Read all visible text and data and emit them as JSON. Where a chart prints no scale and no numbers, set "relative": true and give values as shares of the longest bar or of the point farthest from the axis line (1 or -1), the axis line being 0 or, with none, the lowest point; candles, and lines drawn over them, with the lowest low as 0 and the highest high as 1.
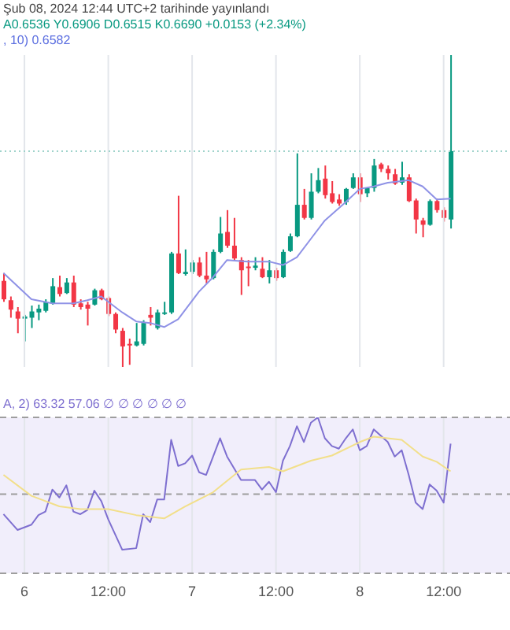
{
  "chart_data": [
    {
      "type": "candlestick",
      "relative": true,
      "annotations": [
        "Şub 08, 2024 12:44 UTC+2 tarihinde yayınlandı",
        "A0.6536 Y0.6906 D0.6515 K0.6690 +0.0153 (+2.34%)",
        ", 10) 0.6582"
      ],
      "x": [
        "2024-02-05T21:00",
        "2024-02-05T22:00",
        "2024-02-05T23:00",
        "2024-02-06T00:00",
        "2024-02-06T01:00",
        "2024-02-06T02:00",
        "2024-02-06T03:00",
        "2024-02-06T04:00",
        "2024-02-06T05:00",
        "2024-02-06T06:00",
        "2024-02-06T07:00",
        "2024-02-06T08:00",
        "2024-02-06T09:00",
        "2024-02-06T10:00",
        "2024-02-06T11:00",
        "2024-02-06T12:00",
        "2024-02-06T13:00",
        "2024-02-06T14:00",
        "2024-02-06T15:00",
        "2024-02-06T16:00",
        "2024-02-06T17:00",
        "2024-02-06T18:00",
        "2024-02-06T19:00",
        "2024-02-06T20:00",
        "2024-02-06T21:00",
        "2024-02-06T22:00",
        "2024-02-06T23:00",
        "2024-02-07T00:00",
        "2024-02-07T01:00",
        "2024-02-07T02:00",
        "2024-02-07T03:00",
        "2024-02-07T04:00",
        "2024-02-07T05:00",
        "2024-02-07T06:00",
        "2024-02-07T07:00",
        "2024-02-07T08:00",
        "2024-02-07T09:00",
        "2024-02-07T10:00",
        "2024-02-07T11:00",
        "2024-02-07T12:00",
        "2024-02-07T13:00",
        "2024-02-07T14:00",
        "2024-02-07T15:00",
        "2024-02-07T16:00",
        "2024-02-07T17:00",
        "2024-02-07T18:00",
        "2024-02-07T19:00",
        "2024-02-07T20:00",
        "2024-02-07T21:00",
        "2024-02-07T22:00",
        "2024-02-07T23:00",
        "2024-02-08T00:00",
        "2024-02-08T01:00",
        "2024-02-08T02:00",
        "2024-02-08T03:00",
        "2024-02-08T04:00",
        "2024-02-08T05:00",
        "2024-02-08T06:00",
        "2024-02-08T07:00",
        "2024-02-08T08:00",
        "2024-02-08T09:00",
        "2024-02-08T10:00",
        "2024-02-08T11:00",
        "2024-02-08T12:00",
        "2024-02-08T13:00"
      ],
      "ohlc": [
        [
          0.276,
          0.301,
          0.209,
          0.217
        ],
        [
          0.214,
          0.226,
          0.158,
          0.184
        ],
        [
          0.178,
          0.192,
          0.108,
          0.155
        ],
        [
          0.155,
          0.167,
          0.082,
          0.162
        ],
        [
          0.158,
          0.197,
          0.125,
          0.178
        ],
        [
          0.175,
          0.2,
          0.15,
          0.187
        ],
        [
          0.18,
          0.217,
          0.175,
          0.209
        ],
        [
          0.204,
          0.285,
          0.2,
          0.259
        ],
        [
          0.256,
          0.293,
          0.226,
          0.234
        ],
        [
          0.237,
          0.285,
          0.234,
          0.271
        ],
        [
          0.271,
          0.293,
          0.192,
          0.2
        ],
        [
          0.204,
          0.217,
          0.184,
          0.192
        ],
        [
          0.2,
          0.209,
          0.133,
          0.187
        ],
        [
          0.2,
          0.251,
          0.197,
          0.246
        ],
        [
          0.246,
          0.251,
          0.214,
          0.217
        ],
        [
          0.221,
          0.226,
          0.163,
          0.17
        ],
        [
          0.17,
          0.175,
          0.108,
          0.12
        ],
        [
          0.116,
          0.125,
          0,
          0.066
        ],
        [
          0.074,
          0.091,
          0.007,
          0.069
        ],
        [
          0.069,
          0.141,
          0.066,
          0.082
        ],
        [
          0.074,
          0.15,
          0.069,
          0.141
        ],
        [
          0.167,
          0.192,
          0.133,
          0.158
        ],
        [
          0.125,
          0.184,
          0.12,
          0.175
        ],
        [
          0.17,
          0.209,
          0.167,
          0.175
        ],
        [
          0.175,
          0.369,
          0.17,
          0.364
        ],
        [
          0.364,
          0.549,
          0.298,
          0.301
        ],
        [
          0.298,
          0.377,
          0.293,
          0.305
        ],
        [
          0.305,
          0.343,
          0.298,
          0.335
        ],
        [
          0.335,
          0.352,
          0.288,
          0.293
        ],
        [
          0.293,
          0.369,
          0.268,
          0.281
        ],
        [
          0.285,
          0.377,
          0.281,
          0.369
        ],
        [
          0.369,
          0.481,
          0.365,
          0.428
        ],
        [
          0.433,
          0.503,
          0.382,
          0.389
        ],
        [
          0.389,
          0.478,
          0.343,
          0.348
        ],
        [
          0.343,
          0.352,
          0.231,
          0.31
        ],
        [
          0.322,
          0.343,
          0.259,
          0.318
        ],
        [
          0.318,
          0.352,
          0.31,
          0.325
        ],
        [
          0.315,
          0.352,
          0.285,
          0.288
        ],
        [
          0.288,
          0.343,
          0.268,
          0.31
        ],
        [
          0.31,
          0.318,
          0.276,
          0.285
        ],
        [
          0.288,
          0.377,
          0.285,
          0.369
        ],
        [
          0.372,
          0.428,
          0.369,
          0.419
        ],
        [
          0.419,
          0.685,
          0.416,
          0.52
        ],
        [
          0.52,
          0.571,
          0.473,
          0.478
        ],
        [
          0.478,
          0.621,
          0.473,
          0.562
        ],
        [
          0.562,
          0.638,
          0.557,
          0.599
        ],
        [
          0.604,
          0.646,
          0.54,
          0.551
        ],
        [
          0.557,
          0.596,
          0.524,
          0.529
        ],
        [
          0.537,
          0.554,
          0.517,
          0.524
        ],
        [
          0.529,
          0.574,
          0.52,
          0.571
        ],
        [
          0.574,
          0.621,
          0.571,
          0.608
        ],
        [
          0.608,
          0.621,
          0.529,
          0.554
        ],
        [
          0.557,
          0.574,
          0.545,
          0.574
        ],
        [
          0.574,
          0.667,
          0.562,
          0.646
        ],
        [
          0.65,
          0.655,
          0.625,
          0.635
        ],
        [
          0.635,
          0.646,
          0.601,
          0.621
        ],
        [
          0.618,
          0.635,
          0.584,
          0.588
        ],
        [
          0.591,
          0.658,
          0.584,
          0.608
        ],
        [
          0.608,
          0.618,
          0.529,
          0.532
        ],
        [
          0.534,
          0.54,
          0.428,
          0.473
        ],
        [
          0.47,
          0.478,
          0.416,
          0.456
        ],
        [
          0.456,
          0.537,
          0.453,
          0.532
        ],
        [
          0.532,
          0.54,
          0.495,
          0.503
        ],
        [
          0.503,
          0.512,
          0.466,
          0.478
        ],
        [
          0.473,
          1,
          0.444,
          0.692
        ]
      ],
      "colors": [
        "#f23645",
        "#f23645",
        "#f23645",
        "#089981",
        "#089981",
        "#089981",
        "#089981",
        "#089981",
        "#f23645",
        "#089981",
        "#f23645",
        "#f23645",
        "#f23645",
        "#089981",
        "#f23645",
        "#f23645",
        "#f23645",
        "#f23645",
        "#f23645",
        "#089981",
        "#089981",
        "#f23645",
        "#089981",
        "#089981",
        "#089981",
        "#f23645",
        "#089981",
        "#089981",
        "#f23645",
        "#f23645",
        "#089981",
        "#089981",
        "#f23645",
        "#f23645",
        "#f23645",
        "#f23645",
        "#089981",
        "#f23645",
        "#089981",
        "#f23645",
        "#089981",
        "#089981",
        "#089981",
        "#f23645",
        "#089981",
        "#089981",
        "#f23645",
        "#f23645",
        "#f23645",
        "#089981",
        "#089981",
        "#f23645",
        "#089981",
        "#089981",
        "#f23645",
        "#f23645",
        "#f23645",
        "#089981",
        "#f23645",
        "#f23645",
        "#f23645",
        "#089981",
        "#f23645",
        "#f23645",
        "#089981"
      ],
      "series": [
        {
          "type": "line",
          "color": "#8f92e6",
          "x": [
            "2024-02-05T21:00",
            "2024-02-06T01:00",
            "2024-02-06T04:00",
            "2024-02-06T07:00",
            "2024-02-06T09:00",
            "2024-02-06T11:00",
            "2024-02-06T14:00",
            "2024-02-06T16:00",
            "2024-02-06T18:00",
            "2024-02-06T20:00",
            "2024-02-06T22:00",
            "2024-02-07T01:00",
            "2024-02-07T03:00",
            "2024-02-07T05:00",
            "2024-02-07T08:00",
            "2024-02-07T11:00",
            "2024-02-07T13:00",
            "2024-02-07T15:00",
            "2024-02-07T17:00",
            "2024-02-07T19:00",
            "2024-02-07T22:00",
            "2024-02-08T00:00",
            "2024-02-08T02:00",
            "2024-02-08T04:00",
            "2024-02-08T07:00",
            "2024-02-08T09:00",
            "2024-02-08T11:00",
            "2024-02-08T13:00"
          ],
          "values": [
            0.301,
            0.217,
            0.204,
            0.204,
            0.214,
            0.226,
            0.175,
            0.146,
            0.141,
            0.128,
            0.153,
            0.242,
            0.288,
            0.343,
            0.338,
            0.338,
            0.327,
            0.352,
            0.411,
            0.47,
            0.529,
            0.571,
            0.579,
            0.591,
            0.599,
            0.579,
            0.537,
            0.54
          ]
        }
      ],
      "ref_lines": [
        {
          "axis": "y",
          "value": 0.692,
          "color": "#9fd3cb",
          "line_style": "dotted"
        }
      ],
      "xlim": [
        "2024-02-05T20:30",
        "2024-02-08T21:30"
      ],
      "xticks": [
        {
          "value": "2024-02-06T00:00",
          "label": null
        },
        {
          "value": "2024-02-06T12:00",
          "label": null
        },
        {
          "value": "2024-02-07T00:00",
          "label": null
        },
        {
          "value": "2024-02-07T12:00",
          "label": null
        },
        {
          "value": "2024-02-08T00:00",
          "label": null
        },
        {
          "value": "2024-02-08T12:00",
          "label": null
        }
      ],
      "tick_labels": false,
      "grid": "x"
    },
    {
      "type": "line",
      "relative": true,
      "annotations": [
        "A, 2) 63.32 57.06 ∅ ∅ ∅ ∅ ∅ ∅"
      ],
      "series": [
        {
          "color": "#7e6fd0",
          "x": [
            "2024-02-05T21:00",
            "2024-02-05T23:00",
            "2024-02-06T01:00",
            "2024-02-06T02:00",
            "2024-02-06T03:00",
            "2024-02-06T04:00",
            "2024-02-06T05:00",
            "2024-02-06T06:00",
            "2024-02-06T07:00",
            "2024-02-06T08:00",
            "2024-02-06T09:00",
            "2024-02-06T10:00",
            "2024-02-06T11:00",
            "2024-02-06T12:00",
            "2024-02-06T14:00",
            "2024-02-06T16:00",
            "2024-02-06T17:00",
            "2024-02-06T18:00",
            "2024-02-06T19:00",
            "2024-02-06T20:00",
            "2024-02-06T21:00",
            "2024-02-06T22:00",
            "2024-02-06T23:00",
            "2024-02-07T00:00",
            "2024-02-07T01:00",
            "2024-02-07T02:00",
            "2024-02-07T04:00",
            "2024-02-07T05:00",
            "2024-02-07T07:00",
            "2024-02-07T09:00",
            "2024-02-07T10:00",
            "2024-02-07T11:00",
            "2024-02-07T12:00",
            "2024-02-07T13:00",
            "2024-02-07T14:00",
            "2024-02-07T15:00",
            "2024-02-07T16:00",
            "2024-02-07T17:00",
            "2024-02-07T18:00",
            "2024-02-07T19:00",
            "2024-02-07T20:00",
            "2024-02-07T21:00",
            "2024-02-07T22:00",
            "2024-02-07T23:00",
            "2024-02-08T00:00",
            "2024-02-08T01:00",
            "2024-02-08T02:00",
            "2024-02-08T03:00",
            "2024-02-08T04:00",
            "2024-02-08T05:00",
            "2024-02-08T06:00",
            "2024-02-08T07:00",
            "2024-02-08T08:00",
            "2024-02-08T09:00",
            "2024-02-08T10:00",
            "2024-02-08T11:00",
            "2024-02-08T12:00",
            "2024-02-08T13:00"
          ],
          "values": [
            0.379,
            0.278,
            0.312,
            0.373,
            0.396,
            0.537,
            0.486,
            0.564,
            0.396,
            0.379,
            0.406,
            0.53,
            0.463,
            0.345,
            0.151,
            0.161,
            0.379,
            0.328,
            0.473,
            0.473,
            0.856,
            0.688,
            0.705,
            0.755,
            0.648,
            0.631,
            0.866,
            0.749,
            0.598,
            0.598,
            0.537,
            0.587,
            0.52,
            0.722,
            0.816,
            0.943,
            0.842,
            0.966,
            1,
            0.866,
            0.816,
            0.799,
            0.866,
            0.923,
            0.789,
            0.816,
            0.923,
            0.883,
            0.842,
            0.749,
            0.789,
            0.631,
            0.453,
            0.412,
            0.57,
            0.53,
            0.453,
            0.832
          ]
        },
        {
          "color": "#f2df8a",
          "x": [
            "2024-02-05T21:00",
            "2024-02-06T01:00",
            "2024-02-06T05:00",
            "2024-02-06T08:00",
            "2024-02-06T12:00",
            "2024-02-06T16:00",
            "2024-02-06T20:00",
            "2024-02-06T23:00",
            "2024-02-07T03:00",
            "2024-02-07T07:00",
            "2024-02-07T11:00",
            "2024-02-07T13:00",
            "2024-02-07T17:00",
            "2024-02-07T20:00",
            "2024-02-08T00:00",
            "2024-02-08T02:00",
            "2024-02-08T06:00",
            "2024-02-08T09:00",
            "2024-02-08T11:00",
            "2024-02-08T13:00"
          ],
          "values": [
            0.631,
            0.497,
            0.429,
            0.412,
            0.412,
            0.373,
            0.352,
            0.429,
            0.52,
            0.665,
            0.682,
            0.654,
            0.722,
            0.755,
            0.842,
            0.876,
            0.856,
            0.749,
            0.715,
            0.654
          ]
        }
      ],
      "ref_lines": [
        {
          "axis": "y",
          "value": 1,
          "color": "#9e9e9e",
          "line_style": "dashed"
        },
        {
          "axis": "y",
          "value": 0.507,
          "color": "#9e9e9e",
          "line_style": "dashed"
        },
        {
          "axis": "y",
          "value": 0,
          "color": "#9e9e9e",
          "line_style": "dashed"
        }
      ],
      "bands": [
        {
          "axis": "y",
          "from": 0,
          "to": 1,
          "color": "#f1eefb"
        }
      ],
      "xlim": [
        "2024-02-05T20:30",
        "2024-02-08T21:30"
      ],
      "xticks": [
        {
          "value": "2024-02-06T00:00",
          "label": "6"
        },
        {
          "value": "2024-02-06T12:00",
          "label": "12:00"
        },
        {
          "value": "2024-02-07T00:00",
          "label": "7"
        },
        {
          "value": "2024-02-07T12:00",
          "label": "12:00"
        },
        {
          "value": "2024-02-08T00:00",
          "label": "8"
        },
        {
          "value": "2024-02-08T12:00",
          "label": "12:00"
        }
      ],
      "grid": "x"
    }
  ]
}
